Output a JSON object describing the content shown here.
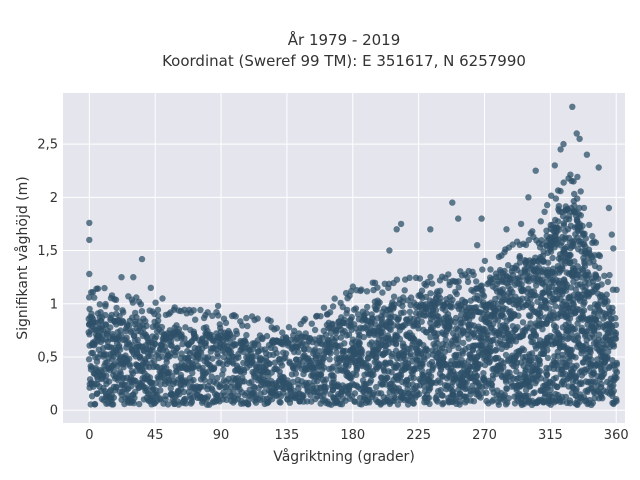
{
  "chart_data": {
    "type": "scatter",
    "title": "År 1979 - 2019",
    "subtitle": "Koordinat (Sweref 99 TM): E 351617, N 6257990",
    "xlabel": "Vågriktning (grader)",
    "ylabel": "Signifikant våghöjd (m)",
    "xlim": [
      -18,
      366
    ],
    "ylim": [
      -0.12,
      2.98
    ],
    "xticks": [
      0,
      45,
      90,
      135,
      180,
      225,
      270,
      315,
      360
    ],
    "xtick_labels": [
      "0",
      "45",
      "90",
      "135",
      "180",
      "225",
      "270",
      "315",
      "360"
    ],
    "yticks": [
      0,
      0.5,
      1,
      1.5,
      2,
      2.5
    ],
    "ytick_labels": [
      "0",
      "0,5",
      "1",
      "1,5",
      "2",
      "2,5"
    ],
    "grid": true,
    "marker_color": "#2e5068",
    "plot_background": "#e5e5ee",
    "envelope_upper": [
      {
        "x": 0,
        "y": 1.0
      },
      {
        "x": 10,
        "y": 1.05
      },
      {
        "x": 20,
        "y": 1.0
      },
      {
        "x": 30,
        "y": 0.95
      },
      {
        "x": 45,
        "y": 0.9
      },
      {
        "x": 60,
        "y": 0.85
      },
      {
        "x": 90,
        "y": 0.8
      },
      {
        "x": 120,
        "y": 0.75
      },
      {
        "x": 135,
        "y": 0.72
      },
      {
        "x": 150,
        "y": 0.75
      },
      {
        "x": 170,
        "y": 0.95
      },
      {
        "x": 180,
        "y": 1.05
      },
      {
        "x": 200,
        "y": 1.1
      },
      {
        "x": 225,
        "y": 1.15
      },
      {
        "x": 250,
        "y": 1.2
      },
      {
        "x": 270,
        "y": 1.3
      },
      {
        "x": 290,
        "y": 1.45
      },
      {
        "x": 305,
        "y": 1.6
      },
      {
        "x": 315,
        "y": 1.9
      },
      {
        "x": 325,
        "y": 2.1
      },
      {
        "x": 332,
        "y": 2.15
      },
      {
        "x": 340,
        "y": 1.8
      },
      {
        "x": 350,
        "y": 1.3
      },
      {
        "x": 360,
        "y": 1.05
      }
    ],
    "envelope_lower": 0.05,
    "outliers": [
      {
        "x": 0,
        "y": 1.76
      },
      {
        "x": 0,
        "y": 1.6
      },
      {
        "x": 36,
        "y": 1.42
      },
      {
        "x": 0,
        "y": 1.28
      },
      {
        "x": 22,
        "y": 1.25
      },
      {
        "x": 30,
        "y": 1.25
      },
      {
        "x": 42,
        "y": 1.15
      },
      {
        "x": 50,
        "y": 1.05
      },
      {
        "x": 88,
        "y": 0.98
      },
      {
        "x": 205,
        "y": 1.5
      },
      {
        "x": 210,
        "y": 1.7
      },
      {
        "x": 213,
        "y": 1.75
      },
      {
        "x": 233,
        "y": 1.7
      },
      {
        "x": 248,
        "y": 1.95
      },
      {
        "x": 252,
        "y": 1.8
      },
      {
        "x": 265,
        "y": 1.55
      },
      {
        "x": 268,
        "y": 1.8
      },
      {
        "x": 285,
        "y": 1.7
      },
      {
        "x": 295,
        "y": 1.75
      },
      {
        "x": 300,
        "y": 2.0
      },
      {
        "x": 305,
        "y": 2.25
      },
      {
        "x": 318,
        "y": 2.3
      },
      {
        "x": 322,
        "y": 2.45
      },
      {
        "x": 324,
        "y": 2.5
      },
      {
        "x": 330,
        "y": 2.85
      },
      {
        "x": 333,
        "y": 2.6
      },
      {
        "x": 335,
        "y": 2.55
      },
      {
        "x": 340,
        "y": 2.4
      },
      {
        "x": 348,
        "y": 2.28
      },
      {
        "x": 355,
        "y": 1.9
      },
      {
        "x": 357,
        "y": 1.65
      },
      {
        "x": 358,
        "y": 1.52
      }
    ]
  }
}
